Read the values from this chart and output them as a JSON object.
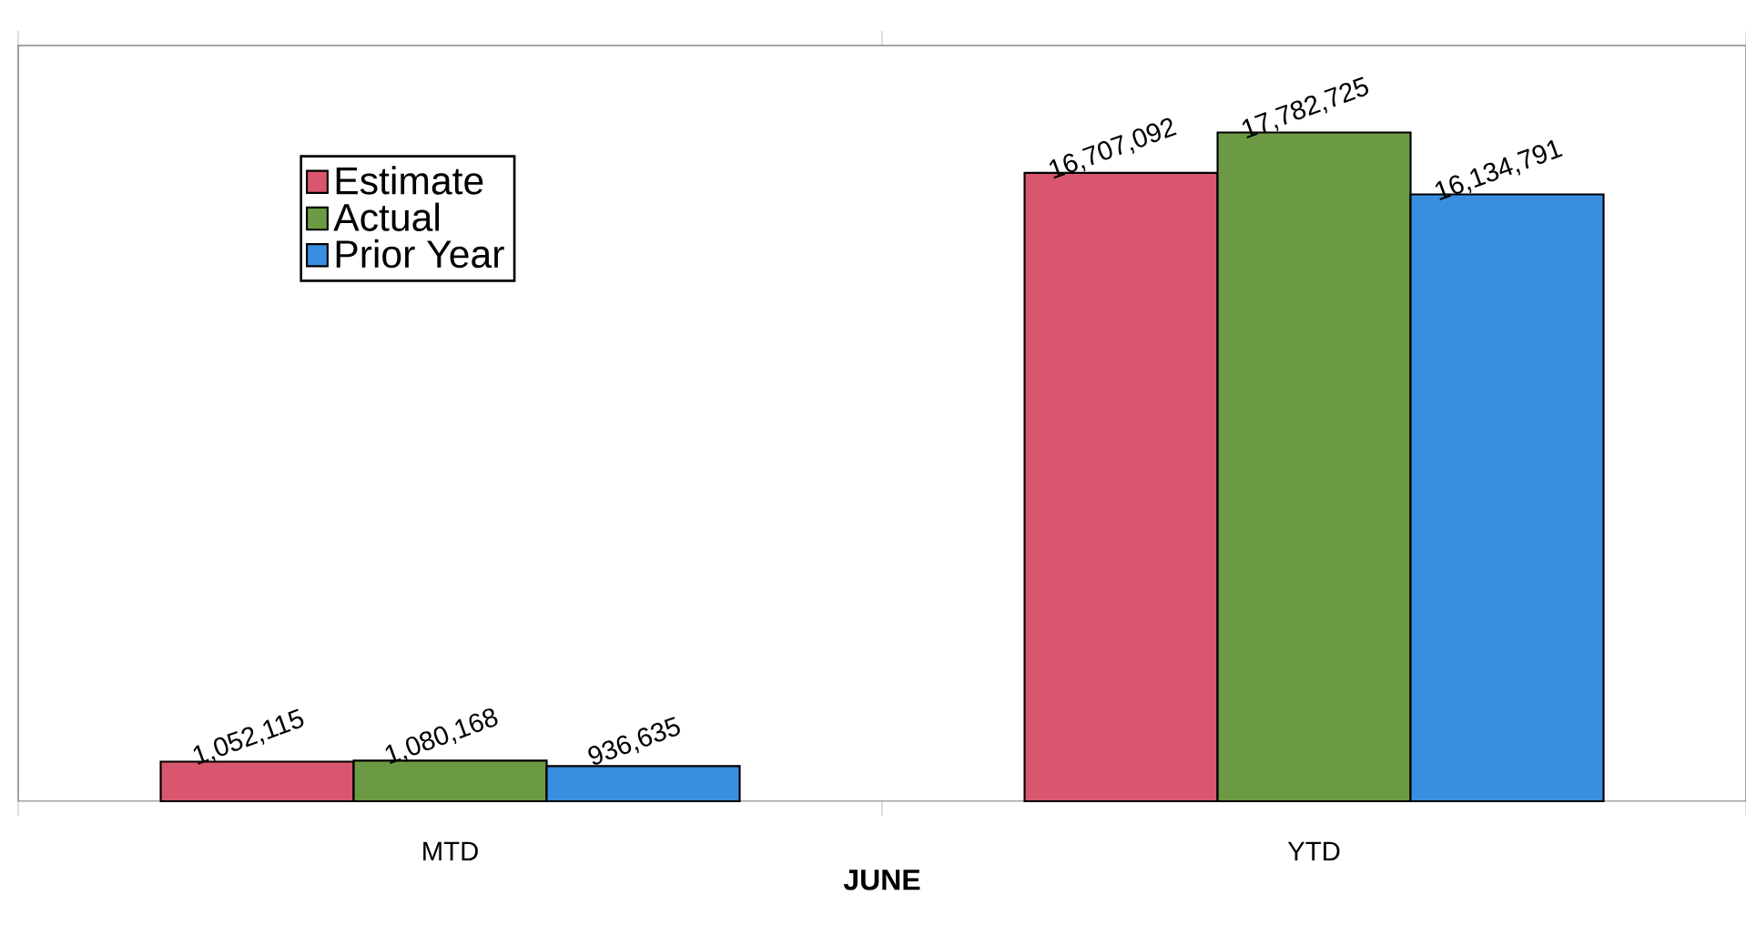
{
  "chart_data": {
    "type": "bar",
    "xlabel": "JUNE",
    "categories": [
      "MTD",
      "YTD"
    ],
    "series": [
      {
        "name": "Estimate",
        "color": "#d9566f",
        "values": [
          1052115,
          16707092
        ],
        "value_labels": [
          "1,052,115",
          "16,707,092"
        ]
      },
      {
        "name": "Actual",
        "color": "#6c9a44",
        "values": [
          1080168,
          17782725
        ],
        "value_labels": [
          "1,080,168",
          "17,782,725"
        ]
      },
      {
        "name": "Prior Year",
        "color": "#3a8ee0",
        "values": [
          936635,
          16134791
        ],
        "value_labels": [
          "936,635",
          "16,134,791"
        ]
      }
    ],
    "legend": "top left",
    "tick_labels": "x"
  }
}
